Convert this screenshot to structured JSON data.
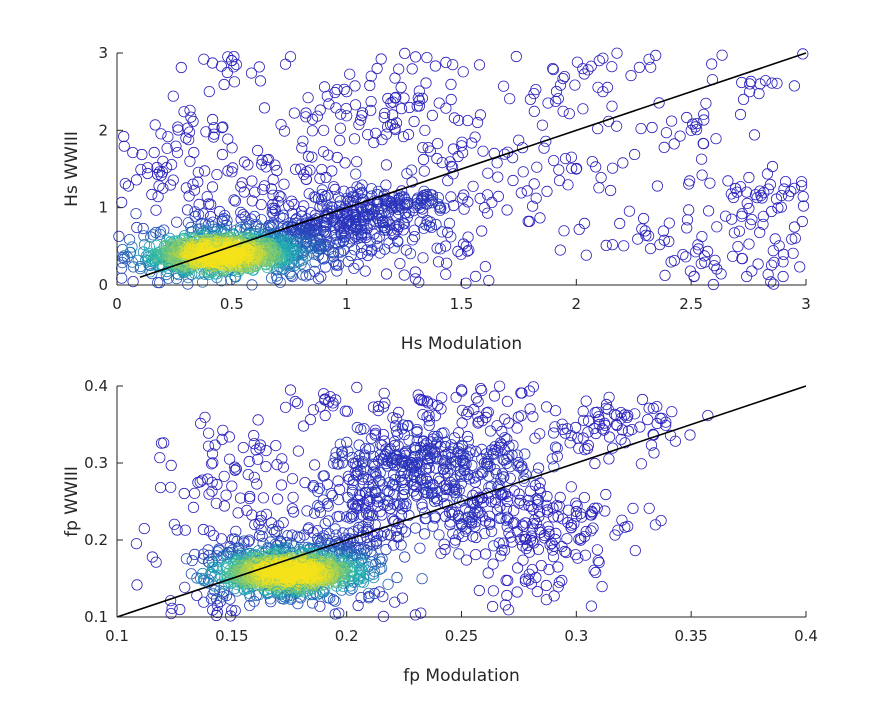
{
  "colors": {
    "marker_low": "#2b1dbd",
    "marker_mid": "#1fb3b3",
    "marker_high": "#f5e21a",
    "axis": "#262626",
    "reference_line": "#000000"
  },
  "chart_data": [
    {
      "type": "scatter",
      "marker": "open circle, colored by point density",
      "xlabel": "Hs Modulation",
      "ylabel": "Hs WWIII",
      "xlim": [
        0,
        3
      ],
      "ylim": [
        0,
        3
      ],
      "xticks": [
        0,
        0.5,
        1,
        1.5,
        2,
        2.5,
        3
      ],
      "xtick_labels": [
        "0",
        "0.5",
        "1",
        "1.5",
        "2",
        "2.5",
        "3"
      ],
      "yticks": [
        0,
        1,
        2,
        3
      ],
      "ytick_labels": [
        "0",
        "1",
        "2",
        "3"
      ],
      "reference_line": {
        "x": [
          0.1,
          3
        ],
        "y": [
          0.1,
          3
        ]
      },
      "density_peak": {
        "x": 0.45,
        "y": 0.4
      },
      "approx_points": [
        [
          0.35,
          0.38
        ],
        [
          0.45,
          0.42
        ],
        [
          0.55,
          0.36
        ],
        [
          0.6,
          0.45
        ],
        [
          0.28,
          0.3
        ],
        [
          0.4,
          0.55
        ],
        [
          0.7,
          0.5
        ],
        [
          0.8,
          0.6
        ],
        [
          0.9,
          0.7
        ],
        [
          1.0,
          0.8
        ],
        [
          1.1,
          0.9
        ],
        [
          1.2,
          1.0
        ],
        [
          0.6,
          1.2
        ],
        [
          0.8,
          1.5
        ],
        [
          0.9,
          2.0
        ],
        [
          1.0,
          2.5
        ],
        [
          1.2,
          2.2
        ],
        [
          1.5,
          1.8
        ],
        [
          1.6,
          1.0
        ],
        [
          1.8,
          2.4
        ],
        [
          2.0,
          1.5
        ],
        [
          2.1,
          2.9
        ],
        [
          2.3,
          0.7
        ],
        [
          2.5,
          2.0
        ],
        [
          2.7,
          1.2
        ],
        [
          2.8,
          2.6
        ],
        [
          2.95,
          0.75
        ],
        [
          2.95,
          1.25
        ],
        [
          0.2,
          1.25
        ],
        [
          0.3,
          1.9
        ],
        [
          0.5,
          2.9
        ],
        [
          1.3,
          2.95
        ],
        [
          2.6,
          0.25
        ],
        [
          2.9,
          0.3
        ],
        [
          0.2,
          1.6
        ],
        [
          1.4,
          0.3
        ]
      ]
    },
    {
      "type": "scatter",
      "marker": "open circle, colored by point density",
      "xlabel": "fp Modulation",
      "ylabel": "fp WWIII",
      "xlim": [
        0.1,
        0.4
      ],
      "ylim": [
        0.1,
        0.4
      ],
      "xticks": [
        0.1,
        0.15,
        0.2,
        0.25,
        0.3,
        0.35,
        0.4
      ],
      "xtick_labels": [
        "0.1",
        "0.15",
        "0.2",
        "0.25",
        "0.3",
        "0.35",
        "0.4"
      ],
      "yticks": [
        0.1,
        0.2,
        0.3,
        0.4
      ],
      "ytick_labels": [
        "0.1",
        "0.2",
        "0.3",
        "0.4"
      ],
      "reference_line": {
        "x": [
          0.1,
          0.4
        ],
        "y": [
          0.1,
          0.4
        ]
      },
      "density_peak": {
        "x": 0.175,
        "y": 0.158
      },
      "approx_points": [
        [
          0.165,
          0.16
        ],
        [
          0.175,
          0.155
        ],
        [
          0.185,
          0.162
        ],
        [
          0.17,
          0.15
        ],
        [
          0.18,
          0.17
        ],
        [
          0.2,
          0.2
        ],
        [
          0.21,
          0.25
        ],
        [
          0.22,
          0.3
        ],
        [
          0.23,
          0.32
        ],
        [
          0.24,
          0.28
        ],
        [
          0.25,
          0.22
        ],
        [
          0.26,
          0.3
        ],
        [
          0.27,
          0.25
        ],
        [
          0.28,
          0.2
        ],
        [
          0.29,
          0.23
        ],
        [
          0.3,
          0.237
        ],
        [
          0.31,
          0.35
        ],
        [
          0.32,
          0.343
        ],
        [
          0.295,
          0.185
        ],
        [
          0.283,
          0.133
        ],
        [
          0.155,
          0.32
        ],
        [
          0.16,
          0.22
        ],
        [
          0.14,
          0.18
        ],
        [
          0.19,
          0.39
        ],
        [
          0.25,
          0.395
        ],
        [
          0.145,
          0.12
        ],
        [
          0.15,
          0.27
        ],
        [
          0.205,
          0.115
        ],
        [
          0.235,
          0.36
        ],
        [
          0.27,
          0.38
        ]
      ]
    }
  ]
}
